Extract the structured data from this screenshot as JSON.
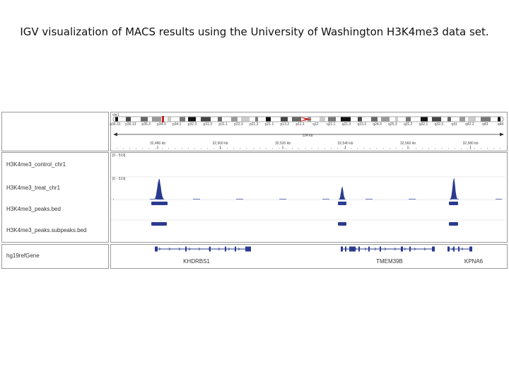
{
  "caption": "IGV visualization of MACS results using the University of Washington H3K4me3 data set.",
  "ideogram": {
    "chromosome": "chr1",
    "bands": [
      "p36.31",
      "p36.13",
      "p35.3",
      "p34.3",
      "p34.1",
      "p32.3",
      "p31.3",
      "p31.1",
      "p22.3",
      "p21.3",
      "p21.1",
      "p13.2",
      "p11.1",
      "q12",
      "q21.1",
      "q21.3",
      "q23.3",
      "q24.3",
      "q25.3",
      "q31.2",
      "q32.1",
      "q32.3",
      "q41",
      "q42.2",
      "q43",
      "q44"
    ]
  },
  "ruler": {
    "span_label": "124 kb",
    "ticks": [
      "32,480 kb",
      "32,500 kb",
      "32,520 kb",
      "32,540 kb",
      "32,560 kb",
      "32,580 kb"
    ]
  },
  "tracks": [
    {
      "label": "H3K4me3_control_chr1",
      "range": "[0 - 519]"
    },
    {
      "label": "H3K4me3_treat_chr1",
      "range": "[0 - 519]"
    },
    {
      "label": "H3K4me3_peaks.bed"
    },
    {
      "label": "H3K4me3_peaks.subpeaks.bed"
    }
  ],
  "gene_track": {
    "label": "hg19refGene",
    "genes": [
      "KHDRBS1",
      "TMEM39B",
      "KPNA6"
    ]
  },
  "colors": {
    "feature": "#2a3b8f",
    "centromere": "#cc2222"
  }
}
